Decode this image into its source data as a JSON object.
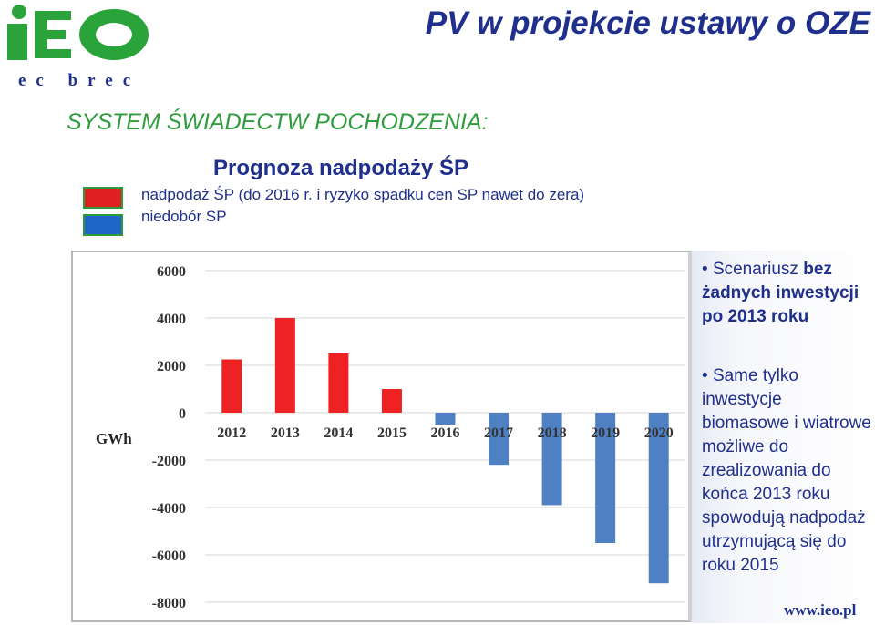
{
  "logo": {
    "text": "iEO",
    "subtext": "ec brec"
  },
  "title": "PV w projekcie ustawy o OZE",
  "subtitle": "SYSTEM ŚWIADECTW POCHODZENIA:",
  "heading": "Prognoza nadpodaży ŚP",
  "legend": [
    {
      "label": "nadpodaż ŚP (do 2016 r. i ryzyko spadku cen SP nawet do zera)",
      "color": "#e02020"
    },
    {
      "label": "niedobór SP",
      "color": "#1f66c8"
    }
  ],
  "chart_data": {
    "type": "bar",
    "categories": [
      "2012",
      "2013",
      "2014",
      "2015",
      "2016",
      "2017",
      "2018",
      "2019",
      "2020"
    ],
    "values": [
      2250,
      4000,
      2500,
      1000,
      -500,
      -2200,
      -3900,
      -5500,
      -7200
    ],
    "colors": [
      "#ee2222",
      "#ee2222",
      "#ee2222",
      "#ee2222",
      "#4f80c4",
      "#4f80c4",
      "#4f80c4",
      "#4f80c4",
      "#4f80c4"
    ],
    "ylabel": "GWh",
    "yticks": [
      "6000",
      "4000",
      "2000",
      "0",
      "-2000",
      "-4000",
      "-6000",
      "-8000"
    ],
    "ylim": [
      -8000,
      6000
    ],
    "grid": true
  },
  "side": {
    "bullet1_prefix": "Scenariusz ",
    "bullet1_bold": "bez żadnych inwestycji po 2013 roku",
    "bullet2": "Same tylko inwestycje biomasowe i wiatrowe możliwe do zrealizowania do końca 2013 roku spowodują nadpodaż utrzymującą się do roku 2015"
  },
  "website": "www.ieo.pl"
}
